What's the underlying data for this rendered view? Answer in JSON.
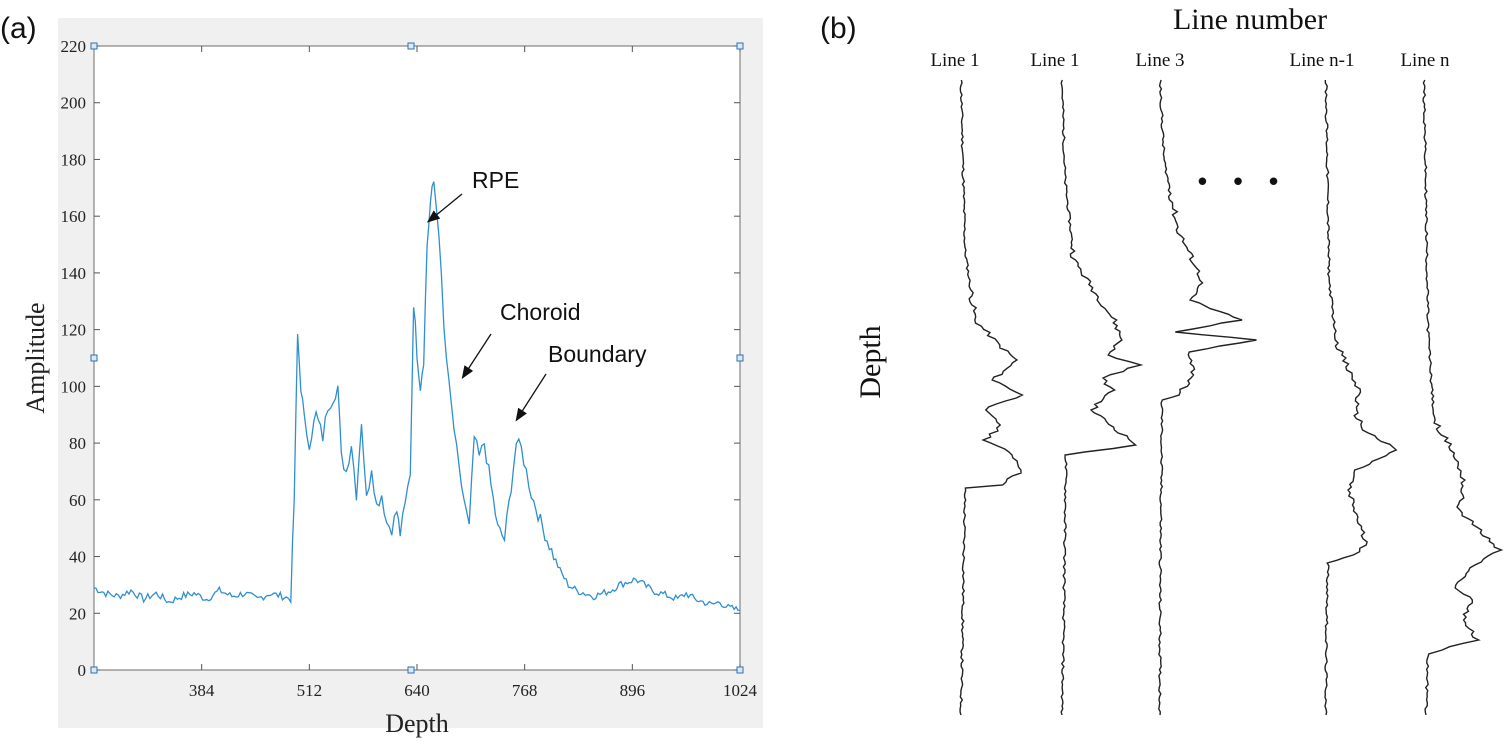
{
  "panel_a": {
    "label": "(a)",
    "chart_data": {
      "type": "line",
      "xlabel": "Depth",
      "ylabel": "Amplitude",
      "xlim": [
        256,
        1024
      ],
      "ylim": [
        0,
        220
      ],
      "xticks": [
        384,
        512,
        640,
        768,
        896,
        1024
      ],
      "yticks": [
        0,
        20,
        40,
        60,
        80,
        100,
        120,
        140,
        160,
        180,
        200,
        220
      ],
      "grid": false,
      "line_color": "#2f8fd0",
      "series": [
        {
          "x": [
            256,
            270,
            285,
            300,
            315,
            330,
            345,
            360,
            375,
            390,
            405,
            420,
            435,
            450,
            465,
            480,
            490,
            494,
            498,
            502,
            506,
            512,
            520,
            528,
            534,
            540,
            546,
            550,
            556,
            562,
            568,
            574,
            580,
            586,
            592,
            598,
            604,
            610,
            616,
            620,
            626,
            632,
            636,
            640,
            644,
            648,
            652,
            656,
            660,
            666,
            672,
            678,
            684,
            690,
            696,
            702,
            708,
            714,
            720,
            728,
            736,
            744,
            752,
            758,
            764,
            770,
            776,
            784,
            792,
            800,
            810,
            820,
            830,
            840,
            850,
            860,
            870,
            880,
            890,
            900,
            910,
            920,
            930,
            940,
            950,
            960,
            970,
            980,
            990,
            1000,
            1010,
            1024
          ],
          "y": [
            29,
            27,
            26,
            28,
            25,
            27,
            24,
            26,
            27,
            25,
            28,
            26,
            27,
            25,
            27,
            26,
            25,
            60,
            118,
            100,
            88,
            80,
            90,
            82,
            93,
            96,
            100,
            75,
            70,
            80,
            62,
            88,
            60,
            72,
            58,
            62,
            52,
            50,
            56,
            48,
            58,
            70,
            130,
            112,
            100,
            110,
            150,
            165,
            172,
            155,
            120,
            100,
            85,
            70,
            60,
            50,
            82,
            75,
            80,
            65,
            50,
            46,
            65,
            80,
            78,
            70,
            62,
            55,
            48,
            42,
            35,
            30,
            28,
            27,
            26,
            27,
            28,
            30,
            31,
            32,
            30,
            28,
            27,
            26,
            25,
            27,
            25,
            24,
            23,
            24,
            22,
            21
          ]
        }
      ],
      "annotations": [
        {
          "text": "RPE",
          "x": 653,
          "y": 158
        },
        {
          "text": "Choroid",
          "x": 694,
          "y": 103
        },
        {
          "text": "Boundary",
          "x": 758,
          "y": 88
        }
      ]
    }
  },
  "panel_b": {
    "label": "(b)",
    "title": "Line number",
    "ylabel": "Depth",
    "ellipsis": "• • •",
    "lines": [
      "Line 1",
      "Line 1",
      "Line 3",
      "Line n-1",
      "Line n"
    ],
    "line_color": "#222222"
  }
}
